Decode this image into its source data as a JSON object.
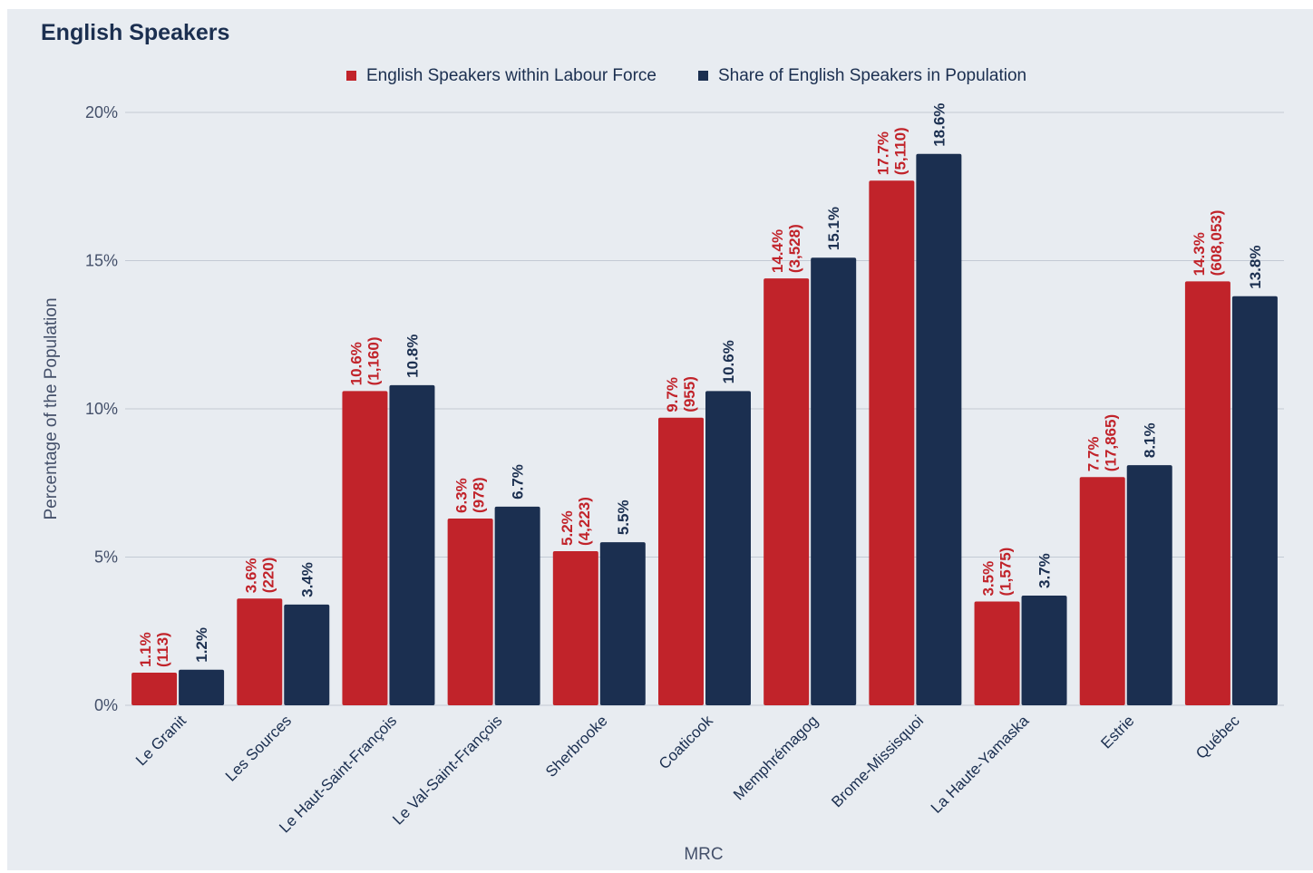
{
  "title": "English Speakers",
  "colors": {
    "background": "#e8ecf1",
    "labour_force": "#c1232a",
    "population": "#1b2f50",
    "grid": "#c3cad4",
    "text": "#1b2f50"
  },
  "chart_data": {
    "type": "bar",
    "title": "English Speakers",
    "xlabel": "MRC",
    "ylabel": "Percentage of the Population",
    "ylim": [
      0,
      20
    ],
    "yticks": [
      "0%",
      "5%",
      "10%",
      "15%",
      "20%"
    ],
    "ytick_values": [
      0,
      5,
      10,
      15,
      20
    ],
    "grid": true,
    "legend_position": "top-center",
    "categories": [
      "Le Granit",
      "Les Sources",
      "Le Haut-Saint-François",
      "Le Val-Saint-François",
      "Sherbrooke",
      "Coaticook",
      "Memphrémagog",
      "Brome-Missisquoi",
      "La Haute-Yamaska",
      "Estrie",
      "Québec"
    ],
    "series": [
      {
        "name": "English Speakers within Labour Force",
        "color": "#c1232a",
        "values": [
          1.1,
          3.6,
          10.6,
          6.3,
          5.2,
          9.7,
          14.4,
          17.7,
          3.5,
          7.7,
          14.3
        ],
        "labels": [
          "1.1%",
          "3.6%",
          "10.6%",
          "6.3%",
          "5.2%",
          "9.7%",
          "14.4%",
          "17.7%",
          "3.5%",
          "7.7%",
          "14.3%"
        ],
        "counts": [
          "(113)",
          "(220)",
          "(1,160)",
          "(978)",
          "(4,223)",
          "(955)",
          "(3,528)",
          "(5,110)",
          "(1,575)",
          "(17,865)",
          "(608,053)"
        ]
      },
      {
        "name": "Share of English Speakers in Population",
        "color": "#1b2f50",
        "values": [
          1.2,
          3.4,
          10.8,
          6.7,
          5.5,
          10.6,
          15.1,
          18.6,
          3.7,
          8.1,
          13.8
        ],
        "labels": [
          "1.2%",
          "3.4%",
          "10.8%",
          "6.7%",
          "5.5%",
          "10.6%",
          "15.1%",
          "18.6%",
          "3.7%",
          "8.1%",
          "13.8%"
        ]
      }
    ]
  }
}
